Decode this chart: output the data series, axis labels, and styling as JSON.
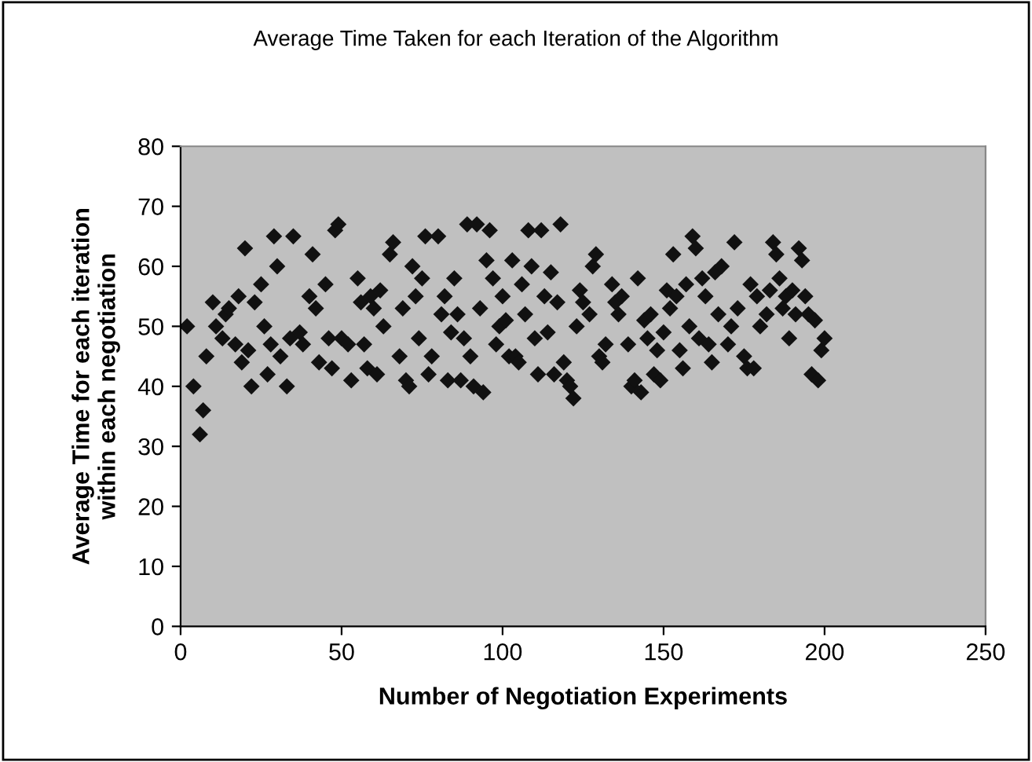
{
  "chart_data": {
    "type": "scatter",
    "title": "Average Time Taken for each Iteration of the Algorithm",
    "xlabel": "Number of Negotiation Experiments",
    "ylabel": "Average Time for each iteration\nwithin each negotiation",
    "xlim": [
      0,
      250
    ],
    "xticks": [
      0,
      50,
      100,
      150,
      200,
      250
    ],
    "ylim": [
      0,
      80
    ],
    "yticks": [
      0,
      10,
      20,
      30,
      40,
      50,
      60,
      70,
      80
    ],
    "grid": false,
    "legend": false,
    "marker": "diamond",
    "series": [
      {
        "color": "#111111",
        "x": [
          2,
          4,
          6,
          7,
          8,
          10,
          11,
          13,
          14,
          15,
          17,
          18,
          19,
          20,
          21,
          22,
          23,
          25,
          26,
          27,
          28,
          29,
          30,
          31,
          33,
          34,
          35,
          37,
          38,
          40,
          41,
          42,
          43,
          45,
          46,
          47,
          48,
          49,
          50,
          52,
          53,
          55,
          56,
          57,
          58,
          59,
          60,
          61,
          62,
          63,
          65,
          66,
          68,
          69,
          70,
          71,
          72,
          73,
          74,
          75,
          76,
          77,
          78,
          80,
          81,
          82,
          83,
          84,
          85,
          86,
          87,
          88,
          89,
          90,
          91,
          92,
          93,
          94,
          95,
          96,
          97,
          98,
          99,
          100,
          101,
          102,
          103,
          104,
          105,
          106,
          107,
          108,
          109,
          110,
          111,
          112,
          113,
          114,
          115,
          116,
          117,
          118,
          119,
          120,
          121,
          122,
          123,
          124,
          125,
          127,
          128,
          129,
          130,
          131,
          132,
          134,
          135,
          136,
          137,
          139,
          140,
          141,
          142,
          143,
          144,
          145,
          146,
          147,
          148,
          149,
          150,
          151,
          152,
          153,
          154,
          155,
          156,
          157,
          158,
          159,
          160,
          161,
          162,
          163,
          164,
          165,
          166,
          167,
          168,
          170,
          171,
          172,
          173,
          175,
          176,
          177,
          178,
          179,
          180,
          182,
          183,
          184,
          185,
          186,
          187,
          188,
          189,
          190,
          191,
          192,
          193,
          194,
          195,
          196,
          197,
          198,
          199,
          200
        ],
        "values": [
          50,
          40,
          32,
          36,
          45,
          54,
          50,
          48,
          52,
          53,
          47,
          55,
          44,
          63,
          46,
          40,
          54,
          57,
          50,
          42,
          47,
          65,
          60,
          45,
          40,
          48,
          65,
          49,
          47,
          55,
          62,
          53,
          44,
          57,
          48,
          43,
          66,
          67,
          48,
          47,
          41,
          58,
          54,
          47,
          43,
          55,
          53,
          42,
          56,
          50,
          62,
          64,
          45,
          53,
          41,
          40,
          60,
          55,
          48,
          58,
          65,
          42,
          45,
          65,
          52,
          55,
          41,
          49,
          58,
          52,
          41,
          48,
          67,
          45,
          40,
          67,
          53,
          39,
          61,
          66,
          58,
          47,
          50,
          55,
          51,
          45,
          61,
          45,
          44,
          57,
          52,
          66,
          60,
          48,
          42,
          66,
          55,
          49,
          59,
          42,
          54,
          67,
          44,
          41,
          40,
          38,
          50,
          56,
          54,
          52,
          60,
          62,
          45,
          44,
          47,
          57,
          54,
          52,
          55,
          47,
          40,
          41,
          58,
          39,
          51,
          48,
          52,
          42,
          46,
          41,
          49,
          56,
          53,
          62,
          55,
          46,
          43,
          57,
          50,
          65,
          63,
          48,
          58,
          55,
          47,
          44,
          59,
          52,
          60,
          47,
          50,
          64,
          53,
          45,
          43,
          57,
          43,
          55,
          50,
          52,
          56,
          64,
          62,
          58,
          53,
          55,
          48,
          56,
          52,
          63,
          61,
          55,
          52,
          42,
          51,
          41,
          46,
          48
        ]
      }
    ]
  }
}
